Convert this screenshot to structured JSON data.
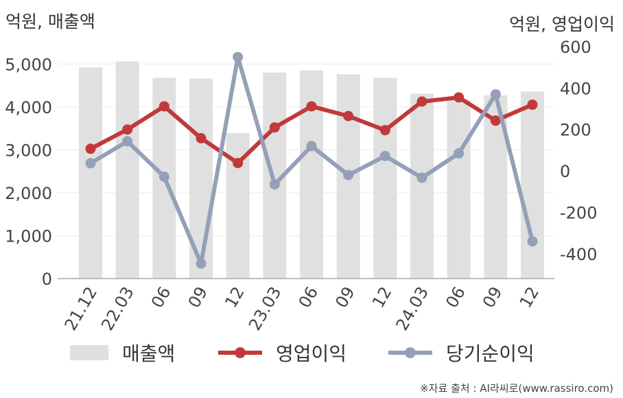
{
  "chart_data": {
    "type": "bar",
    "left_axis_unit": "억원, 매출액",
    "right_axis_unit": "억원, 영업이익",
    "categories": [
      "21.12",
      "22.03",
      "06",
      "09",
      "12",
      "23.03",
      "06",
      "09",
      "12",
      "24.03",
      "06",
      "09",
      "12"
    ],
    "left_ylim": [
      0,
      5500
    ],
    "left_ticks": [
      "0",
      "1,000",
      "2,000",
      "3,000",
      "4,000",
      "5,000"
    ],
    "left_tick_values": [
      0,
      1000,
      2000,
      3000,
      4000,
      5000
    ],
    "right_ylim": [
      -520,
      620
    ],
    "right_ticks": [
      "-400",
      "-200",
      "0",
      "200",
      "400",
      "600"
    ],
    "right_tick_values": [
      -400,
      -200,
      0,
      200,
      400,
      600
    ],
    "grid": true,
    "legend_position": "bottom",
    "series": [
      {
        "name": "매출액",
        "type": "bar",
        "axis": "left",
        "color": "#e0e0e0",
        "values": [
          4920,
          5060,
          4680,
          4660,
          3390,
          4800,
          4850,
          4760,
          4680,
          4310,
          4160,
          4270,
          4360
        ]
      },
      {
        "name": "영업이익",
        "type": "line",
        "axis": "right",
        "color": "#c0393b",
        "values": [
          107,
          200,
          312,
          158,
          38,
          210,
          312,
          265,
          197,
          335,
          355,
          243,
          320
        ]
      },
      {
        "name": "당기순이익",
        "type": "line",
        "axis": "right",
        "color": "#93a0b8",
        "values": [
          37,
          143,
          -28,
          -447,
          550,
          -65,
          120,
          -20,
          72,
          -33,
          85,
          370,
          -340
        ]
      }
    ]
  },
  "source_text": "※자료 출처 : AI라씨로(www.rassiro.com)"
}
